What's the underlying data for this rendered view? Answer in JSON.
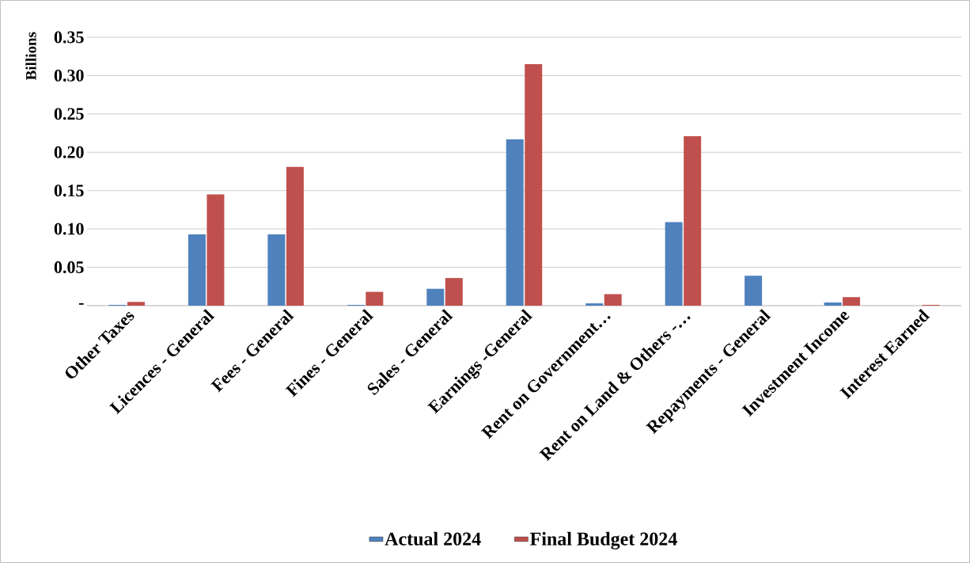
{
  "chart_data": {
    "type": "bar",
    "ylabel": "Billions",
    "categories": [
      "Other Taxes",
      "Licences - General",
      "Fees - General",
      "Fines - General",
      "Sales - General",
      "Earnings -General",
      "Rent on Government…",
      "Rent on Land & Others -…",
      "Repayments - General",
      "Investment Income",
      "Interest Earned"
    ],
    "series": [
      {
        "name": "Actual 2024",
        "color": "#4f81bd",
        "values": [
          0.001,
          0.093,
          0.093,
          0.001,
          0.022,
          0.217,
          0.003,
          0.109,
          0.039,
          0.004,
          0
        ]
      },
      {
        "name": "Final Budget 2024",
        "color": "#c0504d",
        "values": [
          0.005,
          0.145,
          0.181,
          0.018,
          0.036,
          0.315,
          0.015,
          0.221,
          0,
          0.011,
          0.001
        ]
      }
    ],
    "ylim": [
      0,
      0.35
    ],
    "yticks": [
      {
        "value": 0,
        "label": "-"
      },
      {
        "value": 0.05,
        "label": "0.05"
      },
      {
        "value": 0.1,
        "label": "0.10"
      },
      {
        "value": 0.15,
        "label": "0.15"
      },
      {
        "value": 0.2,
        "label": "0.20"
      },
      {
        "value": 0.25,
        "label": "0.25"
      },
      {
        "value": 0.3,
        "label": "0.30"
      },
      {
        "value": 0.35,
        "label": "0.35"
      }
    ],
    "grid": "y",
    "legend": "bottom"
  }
}
